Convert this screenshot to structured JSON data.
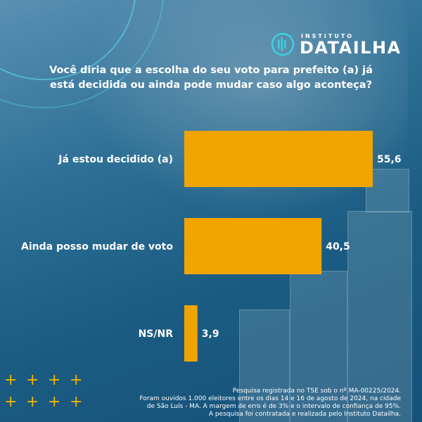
{
  "brand": {
    "small": "INSTITUTO",
    "name": "DATAILHA",
    "accent": "#3fd0e0"
  },
  "colors": {
    "bar": "#f0a400",
    "text": "#ffffff"
  },
  "chart_data": {
    "type": "bar",
    "orientation": "horizontal",
    "title": "Você diria que a escolha do seu voto para prefeito (a) já está decidida ou ainda pode mudar caso algo aconteça?",
    "categories": [
      "Já estou decidido (a)",
      "Ainda posso mudar de voto",
      "NS/NR"
    ],
    "values": [
      55.6,
      40.5,
      3.9
    ],
    "value_labels": [
      "55,6",
      "40,5",
      "3,9"
    ],
    "xlim": [
      0,
      55.6
    ],
    "grid": false
  },
  "footnote": {
    "line1": "Pesquisa registrada no TSE sob o nº MA-00225/2024.",
    "line2": "Foram ouvidos 1.000 eleitores entre os dias 14 e 16 de agosto de 2024, na cidade",
    "line3": "de São Luís - MA. A margem de erro é de 3% e o intervalo de confiança de 95%.",
    "line4": "A pesquisa foi contratada e realizada pelo Instituto Datailha."
  }
}
